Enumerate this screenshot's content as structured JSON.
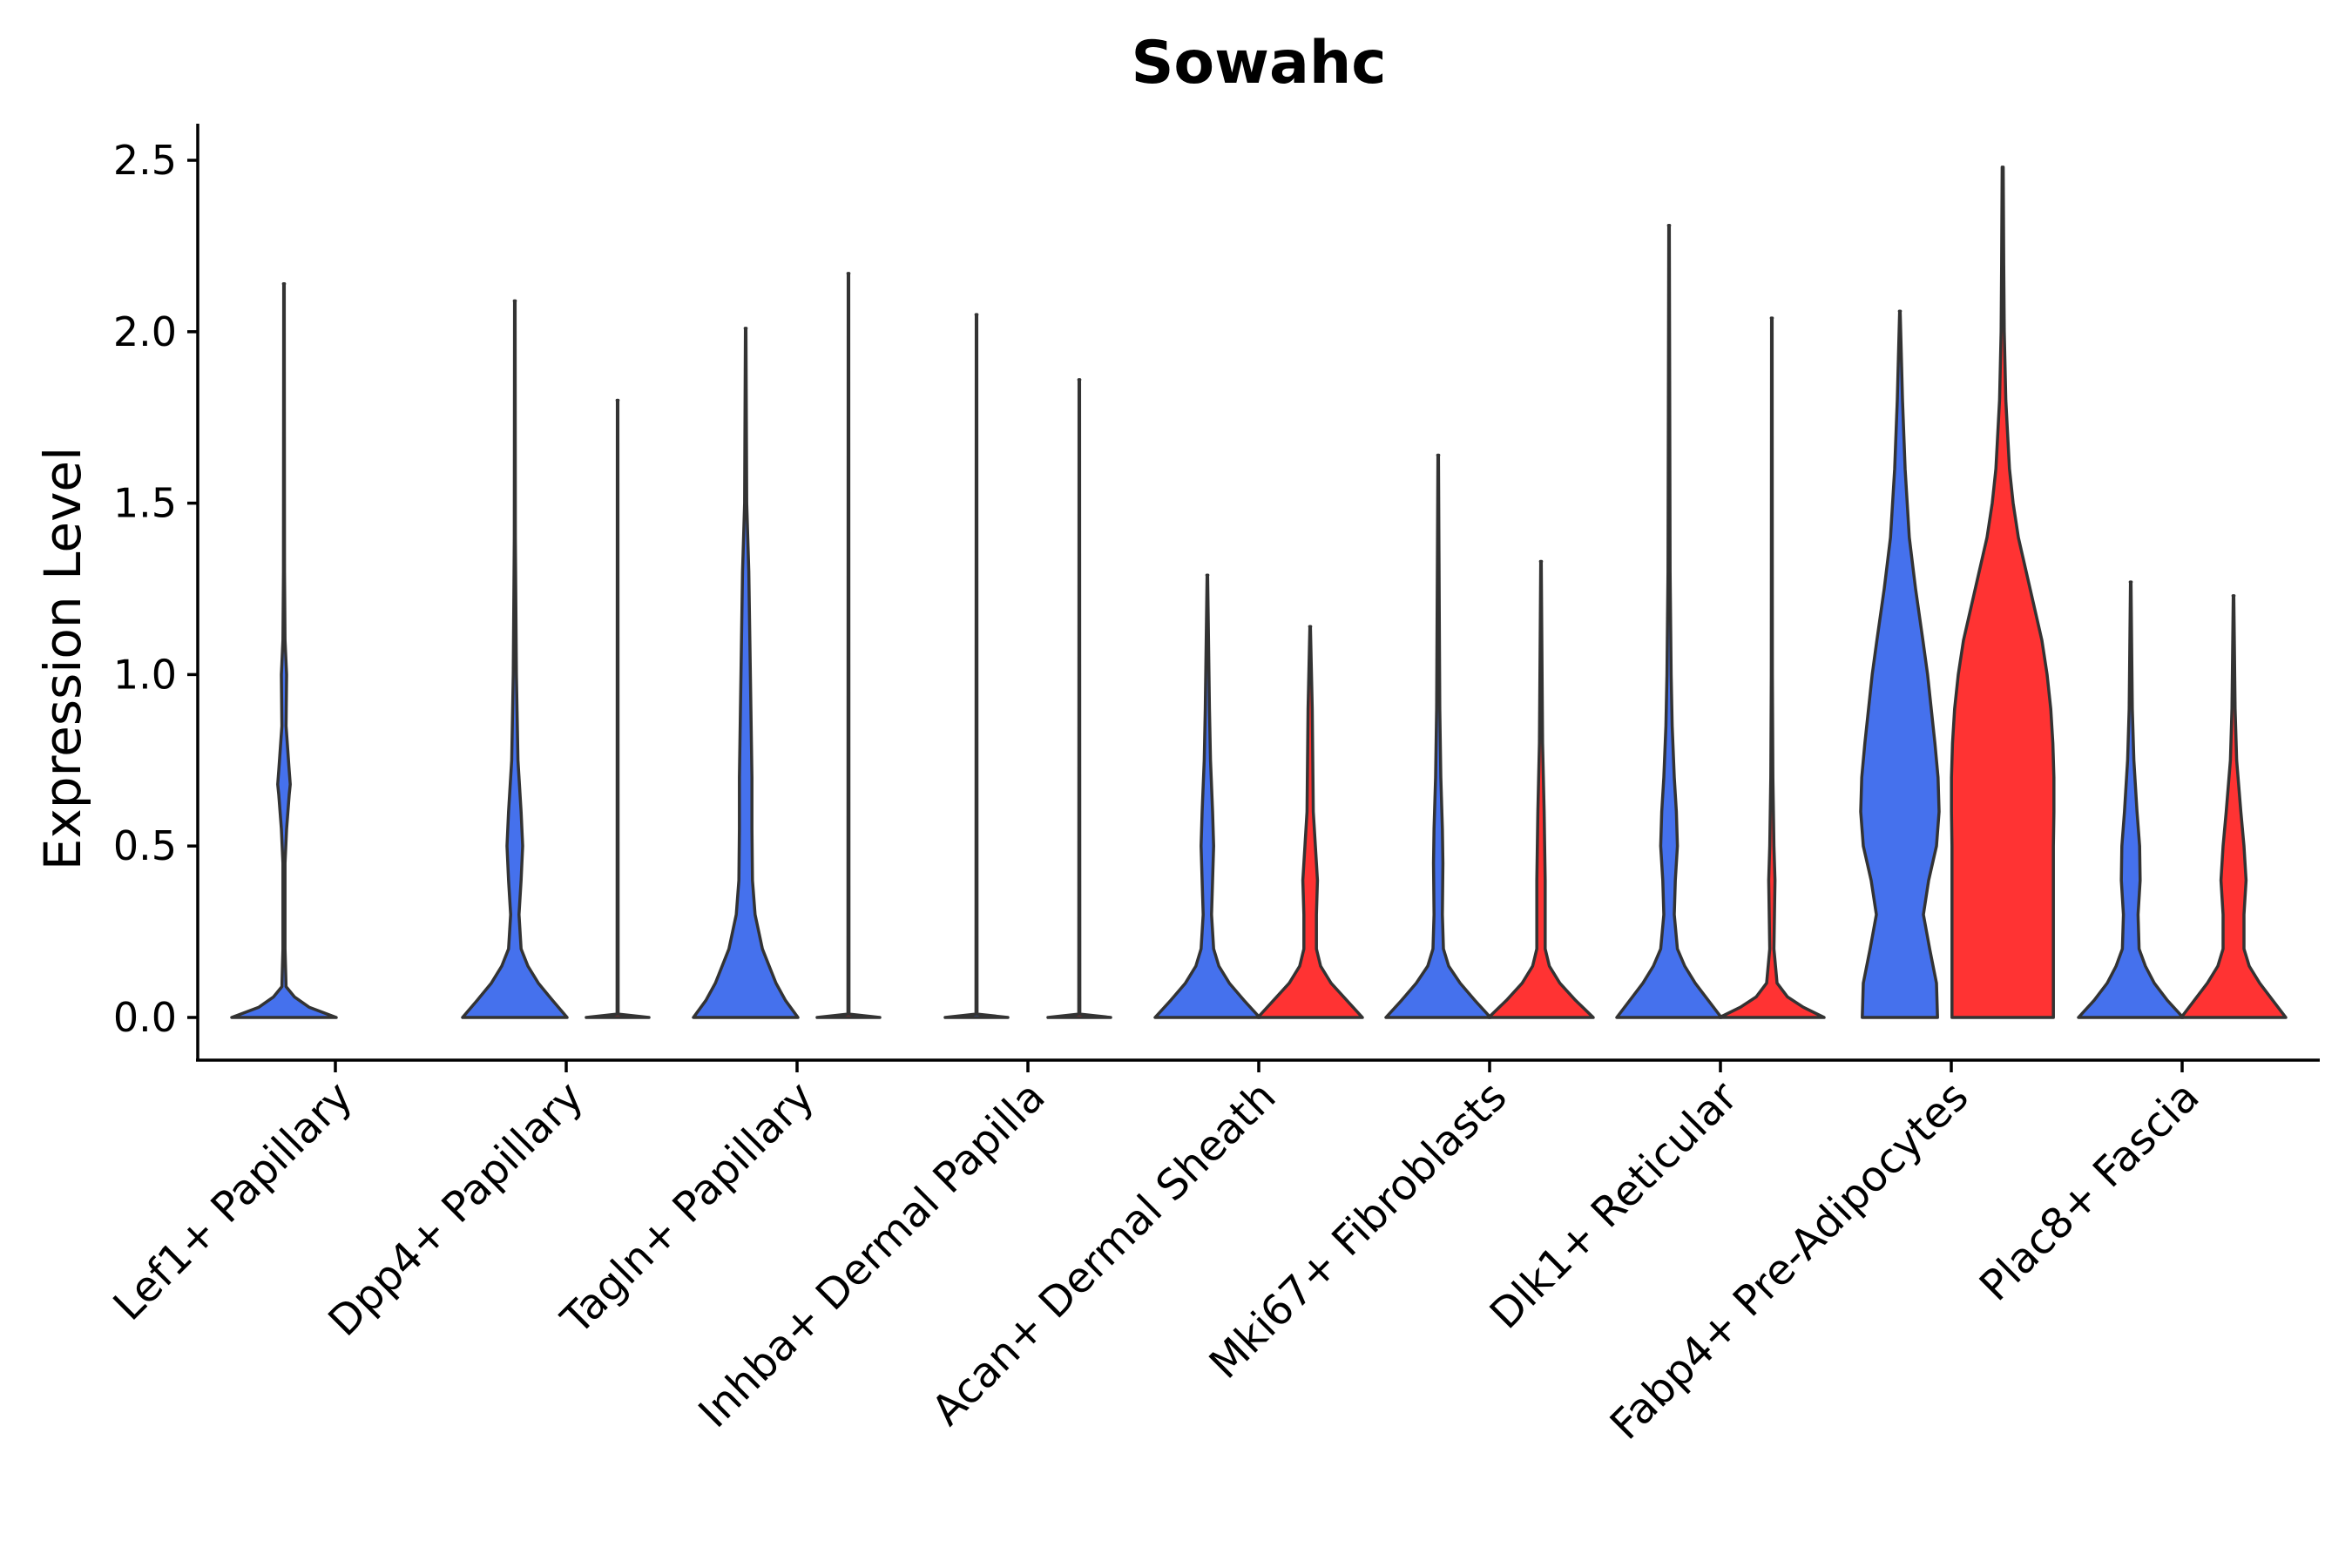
{
  "chart_data": {
    "type": "violin",
    "title": "Sowahc",
    "xlabel": "",
    "ylabel": "Expression Level",
    "ylim": [
      -0.12,
      2.6
    ],
    "yticks": [
      0.0,
      0.5,
      1.0,
      1.5,
      2.0,
      2.5
    ],
    "ytick_labels": [
      "0.0",
      "0.5",
      "1.0",
      "1.5",
      "2.0",
      "2.5"
    ],
    "split_colors": [
      "#4571ED",
      "#FF3333"
    ],
    "categories": [
      "Lef1+ Papillary",
      "Dpp4+ Papillary",
      "Tagln+ Papillary",
      "Inhba+ Dermal Papilla",
      "Acan+ Dermal Sheath",
      "Mki67+ Fibroblasts",
      "Dlk1+ Reticular",
      "Fabp4+ Pre-Adipocytes",
      "Plac8+ Fascia"
    ],
    "violins": [
      {
        "category": "Lef1+ Papillary",
        "group": 0,
        "max": 2.14,
        "profile": [
          [
            0,
            1.0
          ],
          [
            0.03,
            0.48
          ],
          [
            0.06,
            0.2
          ],
          [
            0.09,
            0.04
          ],
          [
            0.2,
            0.02
          ],
          [
            0.45,
            0.02
          ],
          [
            0.55,
            0.05
          ],
          [
            0.65,
            0.1
          ],
          [
            0.68,
            0.12
          ],
          [
            0.72,
            0.1
          ],
          [
            0.85,
            0.04
          ],
          [
            1.0,
            0.05
          ],
          [
            1.1,
            0.02
          ],
          [
            1.3,
            0.01
          ],
          [
            2.14,
            0.005
          ]
        ]
      },
      {
        "category": "Dpp4+ Papillary",
        "group": 0,
        "max": 2.09,
        "profile": [
          [
            0,
            1.0
          ],
          [
            0.05,
            0.72
          ],
          [
            0.1,
            0.45
          ],
          [
            0.15,
            0.25
          ],
          [
            0.2,
            0.12
          ],
          [
            0.3,
            0.08
          ],
          [
            0.4,
            0.12
          ],
          [
            0.5,
            0.15
          ],
          [
            0.6,
            0.12
          ],
          [
            0.75,
            0.06
          ],
          [
            1.0,
            0.03
          ],
          [
            1.4,
            0.01
          ],
          [
            2.09,
            0.005
          ]
        ]
      },
      {
        "category": "Dpp4+ Papillary",
        "group": 1,
        "max": 1.8,
        "profile": [
          [
            0,
            0.6
          ],
          [
            0.01,
            0.01
          ],
          [
            1.8,
            0.005
          ]
        ]
      },
      {
        "category": "Tagln+ Papillary",
        "group": 0,
        "max": 2.01,
        "profile": [
          [
            0,
            1.0
          ],
          [
            0.05,
            0.76
          ],
          [
            0.1,
            0.58
          ],
          [
            0.15,
            0.45
          ],
          [
            0.2,
            0.32
          ],
          [
            0.3,
            0.18
          ],
          [
            0.4,
            0.13
          ],
          [
            0.55,
            0.12
          ],
          [
            0.7,
            0.12
          ],
          [
            0.9,
            0.1
          ],
          [
            1.1,
            0.08
          ],
          [
            1.3,
            0.06
          ],
          [
            1.5,
            0.02
          ],
          [
            2.01,
            0.005
          ]
        ]
      },
      {
        "category": "Tagln+ Papillary",
        "group": 1,
        "max": 2.17,
        "profile": [
          [
            0,
            0.6
          ],
          [
            0.01,
            0.01
          ],
          [
            2.17,
            0.005
          ]
        ]
      },
      {
        "category": "Inhba+ Dermal Papilla",
        "group": 0,
        "max": 2.05,
        "profile": [
          [
            0,
            0.6
          ],
          [
            0.01,
            0.01
          ],
          [
            2.05,
            0.005
          ]
        ]
      },
      {
        "category": "Inhba+ Dermal Papilla",
        "group": 1,
        "max": 1.86,
        "profile": [
          [
            0,
            0.6
          ],
          [
            0.01,
            0.01
          ],
          [
            1.86,
            0.005
          ]
        ]
      },
      {
        "category": "Acan+ Dermal Sheath",
        "group": 0,
        "max": 1.29,
        "profile": [
          [
            0,
            1.0
          ],
          [
            0.05,
            0.7
          ],
          [
            0.1,
            0.42
          ],
          [
            0.15,
            0.22
          ],
          [
            0.2,
            0.12
          ],
          [
            0.3,
            0.08
          ],
          [
            0.4,
            0.1
          ],
          [
            0.5,
            0.12
          ],
          [
            0.6,
            0.1
          ],
          [
            0.75,
            0.06
          ],
          [
            0.9,
            0.04
          ],
          [
            1.29,
            0.005
          ]
        ]
      },
      {
        "category": "Acan+ Dermal Sheath",
        "group": 1,
        "max": 1.14,
        "profile": [
          [
            0,
            1.0
          ],
          [
            0.05,
            0.7
          ],
          [
            0.1,
            0.4
          ],
          [
            0.15,
            0.2
          ],
          [
            0.2,
            0.12
          ],
          [
            0.3,
            0.12
          ],
          [
            0.4,
            0.14
          ],
          [
            0.5,
            0.1
          ],
          [
            0.6,
            0.06
          ],
          [
            0.75,
            0.05
          ],
          [
            0.9,
            0.04
          ],
          [
            1.14,
            0.005
          ]
        ]
      },
      {
        "category": "Mki67+ Fibroblasts",
        "group": 0,
        "max": 1.64,
        "profile": [
          [
            0,
            1.0
          ],
          [
            0.05,
            0.7
          ],
          [
            0.1,
            0.42
          ],
          [
            0.15,
            0.2
          ],
          [
            0.2,
            0.1
          ],
          [
            0.3,
            0.08
          ],
          [
            0.45,
            0.09
          ],
          [
            0.55,
            0.08
          ],
          [
            0.7,
            0.05
          ],
          [
            0.9,
            0.03
          ],
          [
            1.64,
            0.005
          ]
        ]
      },
      {
        "category": "Mki67+ Fibroblasts",
        "group": 1,
        "max": 1.33,
        "profile": [
          [
            0,
            1.0
          ],
          [
            0.05,
            0.66
          ],
          [
            0.1,
            0.36
          ],
          [
            0.15,
            0.16
          ],
          [
            0.2,
            0.08
          ],
          [
            0.3,
            0.08
          ],
          [
            0.4,
            0.08
          ],
          [
            0.5,
            0.07
          ],
          [
            0.6,
            0.06
          ],
          [
            0.8,
            0.03
          ],
          [
            1.33,
            0.005
          ]
        ]
      },
      {
        "category": "Dlk1+ Reticular",
        "group": 0,
        "max": 2.31,
        "profile": [
          [
            0,
            1.0
          ],
          [
            0.05,
            0.75
          ],
          [
            0.1,
            0.5
          ],
          [
            0.15,
            0.3
          ],
          [
            0.2,
            0.16
          ],
          [
            0.3,
            0.1
          ],
          [
            0.4,
            0.12
          ],
          [
            0.5,
            0.16
          ],
          [
            0.6,
            0.14
          ],
          [
            0.7,
            0.1
          ],
          [
            0.85,
            0.06
          ],
          [
            1.0,
            0.04
          ],
          [
            1.3,
            0.02
          ],
          [
            2.31,
            0.005
          ]
        ]
      },
      {
        "category": "Dlk1+ Reticular",
        "group": 1,
        "max": 2.04,
        "profile": [
          [
            0,
            1.0
          ],
          [
            0.03,
            0.6
          ],
          [
            0.06,
            0.3
          ],
          [
            0.1,
            0.1
          ],
          [
            0.2,
            0.04
          ],
          [
            0.3,
            0.05
          ],
          [
            0.4,
            0.06
          ],
          [
            0.5,
            0.04
          ],
          [
            0.7,
            0.02
          ],
          [
            1.0,
            0.01
          ],
          [
            2.04,
            0.005
          ]
        ]
      },
      {
        "category": "Fabp4+ Pre-Adipocytes",
        "group": 0,
        "max": 2.06,
        "profile": [
          [
            0,
            0.72
          ],
          [
            0.1,
            0.7
          ],
          [
            0.2,
            0.57
          ],
          [
            0.3,
            0.45
          ],
          [
            0.4,
            0.55
          ],
          [
            0.5,
            0.7
          ],
          [
            0.6,
            0.75
          ],
          [
            0.7,
            0.73
          ],
          [
            0.8,
            0.67
          ],
          [
            0.9,
            0.6
          ],
          [
            1.0,
            0.53
          ],
          [
            1.1,
            0.44
          ],
          [
            1.25,
            0.3
          ],
          [
            1.4,
            0.18
          ],
          [
            1.6,
            0.1
          ],
          [
            1.8,
            0.05
          ],
          [
            2.06,
            0.005
          ]
        ]
      },
      {
        "category": "Fabp4+ Pre-Adipocytes",
        "group": 1,
        "max": 2.48,
        "profile": [
          [
            0,
            0.97
          ],
          [
            0.1,
            0.97
          ],
          [
            0.3,
            0.97
          ],
          [
            0.5,
            0.97
          ],
          [
            0.6,
            0.98
          ],
          [
            0.7,
            0.98
          ],
          [
            0.8,
            0.96
          ],
          [
            0.9,
            0.92
          ],
          [
            1.0,
            0.85
          ],
          [
            1.1,
            0.75
          ],
          [
            1.2,
            0.6
          ],
          [
            1.3,
            0.45
          ],
          [
            1.4,
            0.3
          ],
          [
            1.5,
            0.2
          ],
          [
            1.6,
            0.13
          ],
          [
            1.8,
            0.06
          ],
          [
            2.0,
            0.03
          ],
          [
            2.2,
            0.02
          ],
          [
            2.48,
            0.01
          ]
        ]
      },
      {
        "category": "Plac8+ Fascia",
        "group": 0,
        "max": 1.27,
        "profile": [
          [
            0,
            1.0
          ],
          [
            0.05,
            0.7
          ],
          [
            0.1,
            0.45
          ],
          [
            0.15,
            0.28
          ],
          [
            0.2,
            0.16
          ],
          [
            0.3,
            0.14
          ],
          [
            0.4,
            0.18
          ],
          [
            0.5,
            0.17
          ],
          [
            0.6,
            0.12
          ],
          [
            0.75,
            0.06
          ],
          [
            0.9,
            0.03
          ],
          [
            1.27,
            0.005
          ]
        ]
      },
      {
        "category": "Plac8+ Fascia",
        "group": 1,
        "max": 1.23,
        "profile": [
          [
            0,
            1.0
          ],
          [
            0.05,
            0.75
          ],
          [
            0.1,
            0.5
          ],
          [
            0.15,
            0.3
          ],
          [
            0.2,
            0.2
          ],
          [
            0.3,
            0.2
          ],
          [
            0.4,
            0.24
          ],
          [
            0.5,
            0.2
          ],
          [
            0.6,
            0.14
          ],
          [
            0.75,
            0.06
          ],
          [
            0.9,
            0.03
          ],
          [
            1.23,
            0.005
          ]
        ]
      }
    ]
  }
}
